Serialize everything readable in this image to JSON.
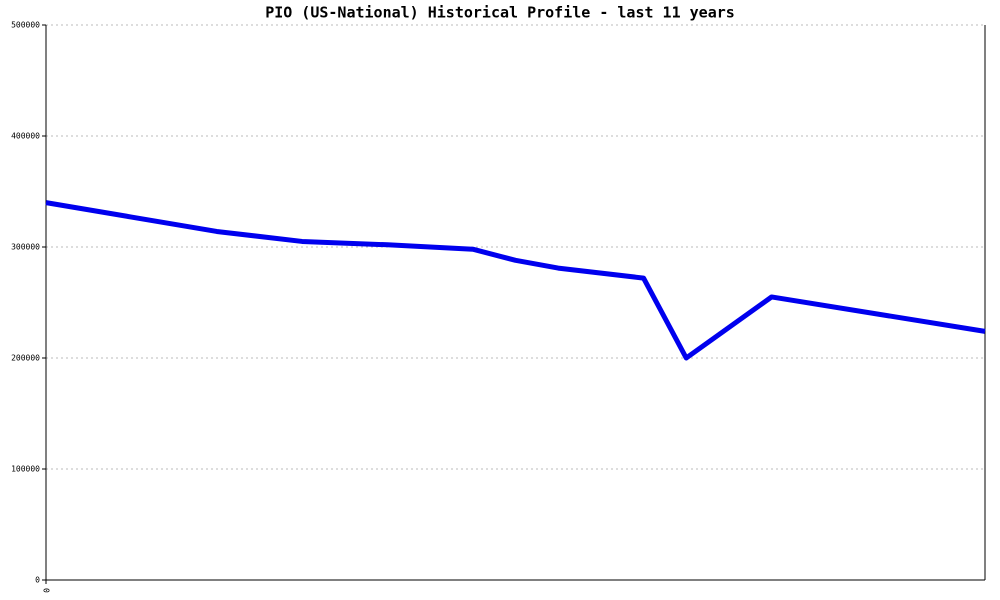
{
  "chart_data": {
    "type": "line",
    "title": "PIO (US-National) Historical Profile - last 11 years",
    "x": [
      0,
      1,
      2,
      3,
      4,
      5,
      5.5,
      6,
      7,
      7.5,
      8.5,
      11
    ],
    "series": [
      {
        "color": "#0000ee",
        "values": [
          340000,
          327000,
          314000,
          305000,
          302000,
          298000,
          288000,
          281000,
          272000,
          200000,
          255000,
          224000
        ]
      }
    ],
    "xlim": [
      0,
      11
    ],
    "xticks": [
      0
    ],
    "ylim": [
      0,
      500000
    ],
    "yticks": [
      0,
      100000,
      200000,
      300000,
      400000,
      500000
    ],
    "grid": true
  }
}
